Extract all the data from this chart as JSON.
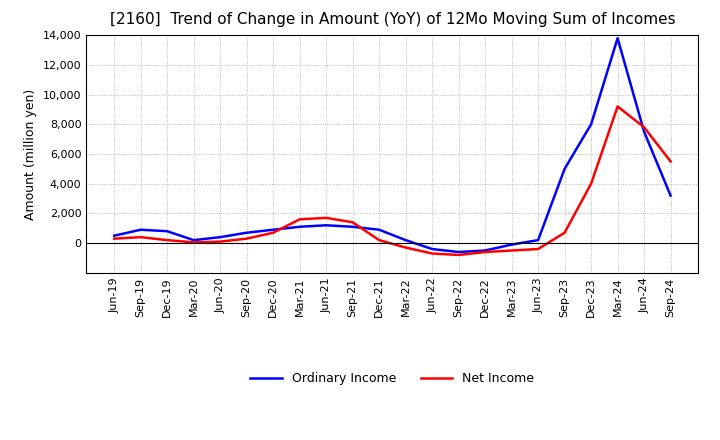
{
  "title": "[2160]  Trend of Change in Amount (YoY) of 12Mo Moving Sum of Incomes",
  "ylabel": "Amount (million yen)",
  "x_labels": [
    "Jun-19",
    "Sep-19",
    "Dec-19",
    "Mar-20",
    "Jun-20",
    "Sep-20",
    "Dec-20",
    "Mar-21",
    "Jun-21",
    "Sep-21",
    "Dec-21",
    "Mar-22",
    "Jun-22",
    "Sep-22",
    "Dec-22",
    "Mar-23",
    "Jun-23",
    "Sep-23",
    "Dec-23",
    "Mar-24",
    "Jun-24",
    "Sep-24"
  ],
  "ordinary_income": [
    500,
    900,
    800,
    200,
    400,
    700,
    900,
    1100,
    1200,
    1100,
    900,
    200,
    -400,
    -600,
    -500,
    -100,
    200,
    5000,
    8000,
    13800,
    7500,
    3200
  ],
  "net_income": [
    300,
    400,
    200,
    50,
    100,
    300,
    700,
    1600,
    1700,
    1400,
    200,
    -300,
    -700,
    -800,
    -600,
    -500,
    -400,
    700,
    4000,
    9200,
    7800,
    5500
  ],
  "ordinary_color": "#0000ff",
  "net_color": "#ff0000",
  "ylim_min": -2000,
  "ylim_max": 14000,
  "yticks": [
    0,
    2000,
    4000,
    6000,
    8000,
    10000,
    12000,
    14000
  ],
  "background_color": "#ffffff",
  "grid_color": "#aaaaaa",
  "title_fontsize": 11,
  "label_fontsize": 9,
  "tick_fontsize": 8
}
